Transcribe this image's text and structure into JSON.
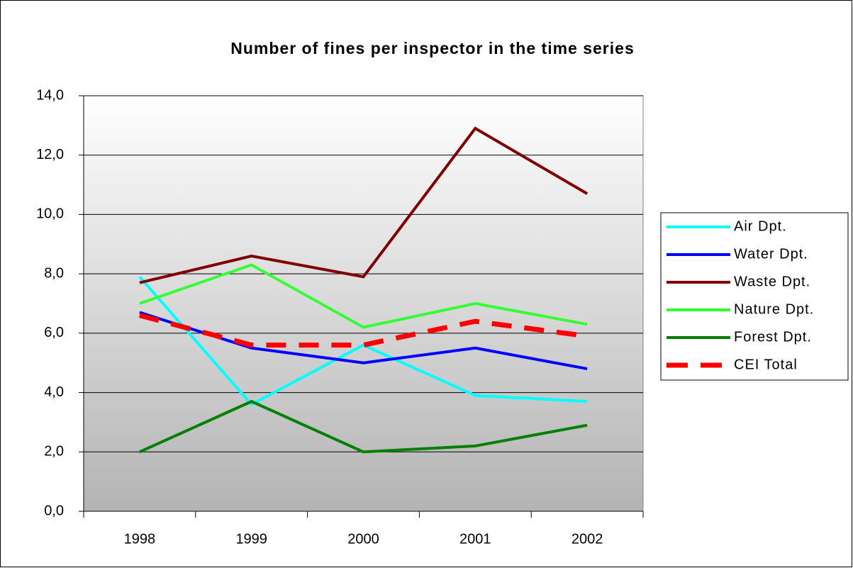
{
  "chart_data": {
    "type": "line",
    "title": "Number of fines per inspector in the time series",
    "categories": [
      "1998",
      "1999",
      "2000",
      "2001",
      "2002"
    ],
    "series": [
      {
        "name": "Air Dpt.",
        "color": "#00ffff",
        "values": [
          7.9,
          3.6,
          5.6,
          3.9,
          3.7
        ]
      },
      {
        "name": "Water Dpt.",
        "color": "#0000ff",
        "values": [
          6.7,
          5.5,
          5.0,
          5.5,
          4.8
        ]
      },
      {
        "name": "Waste Dpt.",
        "color": "#800000",
        "values": [
          7.7,
          8.6,
          7.9,
          12.9,
          10.7
        ]
      },
      {
        "name": "Nature Dpt.",
        "color": "#33ff33",
        "values": [
          7.0,
          8.3,
          6.2,
          7.0,
          6.3
        ]
      },
      {
        "name": "Forest Dpt.",
        "color": "#008000",
        "values": [
          2.0,
          3.7,
          2.0,
          2.2,
          2.9
        ]
      },
      {
        "name": "CEI Total",
        "color": "#ff0000",
        "dashed": true,
        "values": [
          6.6,
          5.6,
          5.6,
          6.4,
          5.9
        ]
      }
    ],
    "ylim": [
      0,
      14
    ],
    "yticks": [
      {
        "value": 0,
        "label": "0,0"
      },
      {
        "value": 2,
        "label": "2,0"
      },
      {
        "value": 4,
        "label": "4,0"
      },
      {
        "value": 6,
        "label": "6,0"
      },
      {
        "value": 8,
        "label": "8,0"
      },
      {
        "value": 10,
        "label": "10,0"
      },
      {
        "value": 12,
        "label": "12,0"
      },
      {
        "value": 14,
        "label": "14,0"
      }
    ],
    "grid": true,
    "legend": "right"
  }
}
